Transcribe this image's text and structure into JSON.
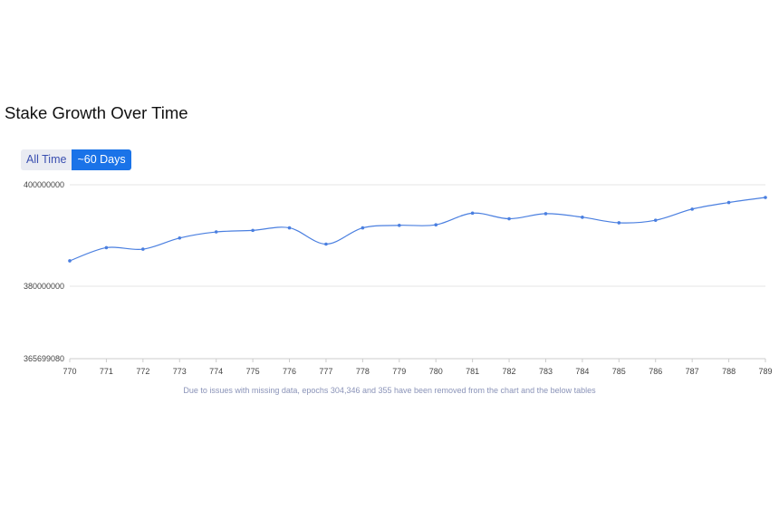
{
  "section": {
    "title": "Stake Growth Over Time"
  },
  "range_toggle": {
    "options": [
      "All Time",
      "~60 Days"
    ],
    "selected": "~60 Days"
  },
  "colors": {
    "line": "#4a7fe0",
    "active_button": "#1a73e8",
    "inactive_button": "#e9ebf2",
    "grid": "#e6e6e6"
  },
  "chart_data": {
    "type": "line",
    "title": "",
    "xlabel": "",
    "ylabel": "",
    "x": [
      770,
      771,
      772,
      773,
      774,
      775,
      776,
      777,
      778,
      779,
      780,
      781,
      782,
      783,
      784,
      785,
      786,
      787,
      788,
      789
    ],
    "series": [
      {
        "values": [
          385000000,
          387600000,
          387300000,
          389500000,
          390700000,
          391000000,
          391500000,
          388300000,
          391500000,
          392000000,
          392100000,
          394400000,
          393300000,
          394300000,
          393600000,
          392500000,
          393000000,
          395200000,
          396500000,
          397500000
        ]
      }
    ],
    "y_ticks": [
      "400000000",
      "380000000",
      "365699080"
    ],
    "ylim": [
      365699080,
      400000000
    ],
    "grid": true,
    "footnote": "Due to issues with missing data, epochs 304,346 and 355 have been removed from the chart and the below tables"
  }
}
